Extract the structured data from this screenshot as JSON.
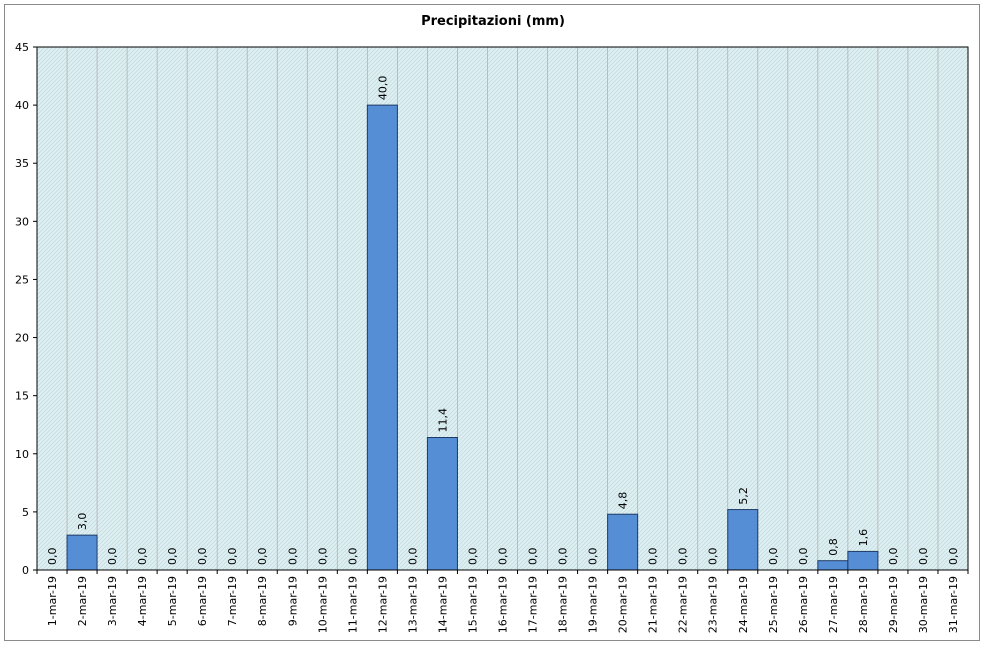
{
  "chart_data": {
    "type": "bar",
    "title": "Precipitazioni (mm)",
    "xlabel": "",
    "ylabel": "",
    "ylim": [
      0,
      45
    ],
    "yticks": [
      0,
      5,
      10,
      15,
      20,
      25,
      30,
      35,
      40,
      45
    ],
    "grid": true,
    "legend": "none",
    "categories": [
      "1-mar-19",
      "2-mar-19",
      "3-mar-19",
      "4-mar-19",
      "5-mar-19",
      "6-mar-19",
      "7-mar-19",
      "8-mar-19",
      "9-mar-19",
      "10-mar-19",
      "11-mar-19",
      "12-mar-19",
      "13-mar-19",
      "14-mar-19",
      "15-mar-19",
      "16-mar-19",
      "17-mar-19",
      "18-mar-19",
      "19-mar-19",
      "20-mar-19",
      "21-mar-19",
      "22-mar-19",
      "23-mar-19",
      "24-mar-19",
      "25-mar-19",
      "26-mar-19",
      "27-mar-19",
      "28-mar-19",
      "29-mar-19",
      "30-mar-19",
      "31-mar-19"
    ],
    "values": [
      0,
      3,
      0,
      0,
      0,
      0,
      0,
      0,
      0,
      0,
      0,
      40,
      0,
      11.4,
      0,
      0,
      0,
      0,
      0,
      4.8,
      0,
      0,
      0,
      5.2,
      0,
      0,
      0.8,
      1.6,
      0,
      0,
      0
    ],
    "value_labels": [
      "0,0",
      "3,0",
      "0,0",
      "0,0",
      "0,0",
      "0,0",
      "0,0",
      "0,0",
      "0,0",
      "0,0",
      "0,0",
      "40,0",
      "0,0",
      "11,4",
      "0,0",
      "0,0",
      "0,0",
      "0,0",
      "0,0",
      "4,8",
      "0,0",
      "0,0",
      "0,0",
      "5,2",
      "0,0",
      "0,0",
      "0,8",
      "1,6",
      "0,0",
      "0,0",
      "0,0"
    ],
    "colors": {
      "bar": "#558ed5",
      "bar_border": "#1f3a66",
      "plot_bg": "#dff0f2",
      "hatch": "#c4dde2",
      "grid": "#b0b0b0"
    }
  }
}
